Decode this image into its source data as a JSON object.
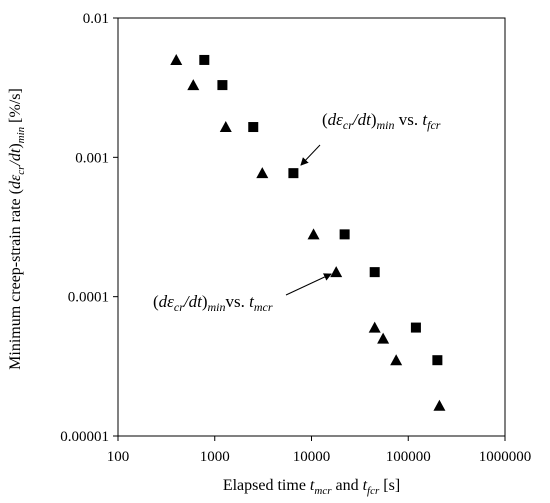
{
  "chart_data": {
    "type": "scatter",
    "xscale": "log",
    "yscale": "log",
    "xlim": [
      100,
      1000000
    ],
    "ylim": [
      1e-05,
      0.01
    ],
    "xticks": [
      "100",
      "1000",
      "10000",
      "100000",
      "1000000"
    ],
    "yticks": [
      "0.00001",
      "0.0001",
      "0.001",
      "0.01"
    ],
    "xlabel": {
      "prefix": "Elapsed time ",
      "t1": "t",
      "t1_sub": "mcr",
      "mid": " and ",
      "t2": "t",
      "t2_sub": "fcr",
      "suffix": " [s]"
    },
    "ylabel": {
      "prefix": "Minimum creep-strain rate (",
      "d": "d",
      "eps": "ε",
      "eps_sub": "cr",
      "slash_dt": "/dt",
      "close": ")",
      "min_sub": "min",
      "unit": " [%/s]"
    },
    "grid": false,
    "legend": "none",
    "series": [
      {
        "marker": "square",
        "x": [
          780,
          1200,
          2500,
          6500,
          22000,
          45000,
          120000,
          200000
        ],
        "y": [
          0.005,
          0.0033,
          0.00165,
          0.00077,
          0.00028,
          0.00015,
          6e-05,
          3.5e-05
        ]
      },
      {
        "marker": "triangle",
        "x": [
          400,
          600,
          1300,
          3100,
          10500,
          18000,
          45000,
          55000,
          75000,
          210000
        ],
        "y": [
          0.005,
          0.0033,
          0.00165,
          0.00077,
          0.00028,
          0.00015,
          6e-05,
          5e-05,
          3.5e-05,
          1.65e-05
        ]
      }
    ],
    "annotations": [
      {
        "open": "(",
        "d": "d",
        "eps": "ε",
        "eps_sub": "cr",
        "slash_dt": "/dt",
        "close": ")",
        "min_sub": "min",
        "vs": " vs. ",
        "t": "t",
        "t_sub": "fcr",
        "points_to": [
          6500,
          0.00077
        ]
      },
      {
        "open": "(",
        "d": "d",
        "eps": "ε",
        "eps_sub": "cr",
        "slash_dt": "/dt",
        "close": ")",
        "min_sub": "min",
        "vs": "vs. ",
        "t": "t",
        "t_sub": "mcr",
        "points_to": [
          18000,
          0.00015
        ]
      }
    ]
  }
}
